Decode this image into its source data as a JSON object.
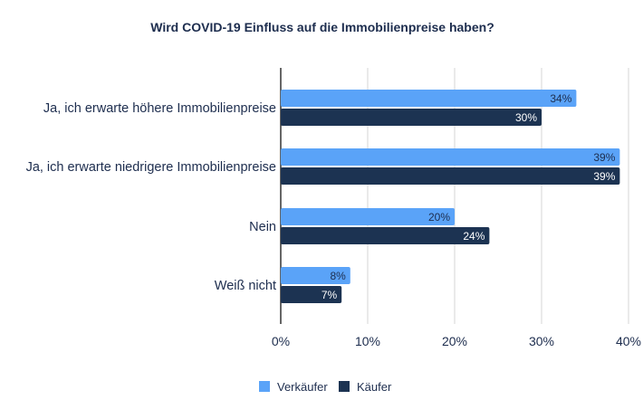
{
  "chart_data": {
    "type": "bar",
    "orientation": "horizontal",
    "title": "Wird COVID-19 Einfluss auf die Immobilienpreise haben?",
    "categories": [
      "Ja, ich erwarte höhere Immobilienpreise",
      "Ja, ich erwarte niedrigere Immobilienpreise",
      "Nein",
      "Weiß nicht"
    ],
    "series": [
      {
        "name": "Verkäufer",
        "color": "#5aa3f8",
        "label_color": "#1d2d4e",
        "values": [
          34,
          39,
          20,
          8
        ],
        "labels": [
          "34%",
          "39%",
          "20%",
          "8%"
        ]
      },
      {
        "name": "Käufer",
        "color": "#1c3352",
        "label_color": "#ffffff",
        "values": [
          30,
          39,
          24,
          7
        ],
        "labels": [
          "30%",
          "39%",
          "24%",
          "7%"
        ]
      }
    ],
    "xlim": [
      0,
      40
    ],
    "xticks": [
      0,
      10,
      20,
      30,
      40
    ],
    "xtick_labels": [
      "0%",
      "10%",
      "20%",
      "30%",
      "40%"
    ],
    "xlabel": "",
    "ylabel": "",
    "grid": true,
    "legend_position": "bottom-center"
  }
}
